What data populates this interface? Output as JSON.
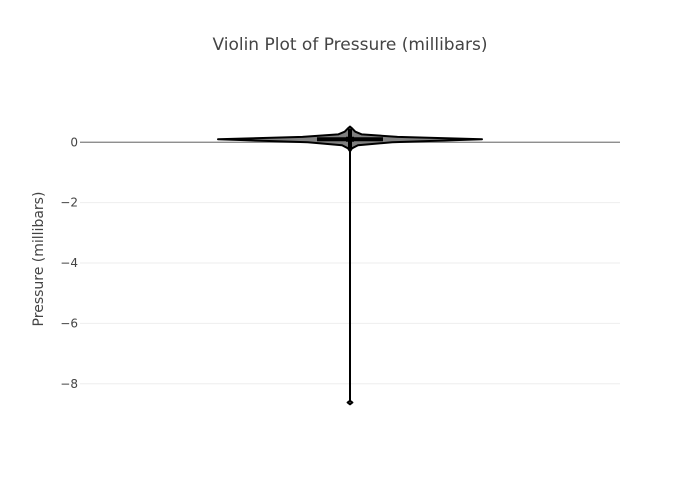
{
  "chart_data": {
    "type": "violin",
    "title": "Violin Plot of Pressure (millibars)",
    "xlabel": "",
    "ylabel": "Pressure (millibars)",
    "ylim": [
      -9.2,
      1.4
    ],
    "yticks": [
      0,
      -2,
      -4,
      -6,
      -8
    ],
    "ytick_labels": [
      "0",
      "−2",
      "−4",
      "−6",
      "−8"
    ],
    "grid": true,
    "zero_line": true,
    "legend": "none",
    "colors": {
      "fill": "#808080",
      "outline": "#000000",
      "grid": "#eeeeee",
      "zero_line": "#7f7f7f",
      "text": "#444444"
    },
    "series": [
      {
        "min": -8.65,
        "q1": 0.05,
        "median": 0.1,
        "q3": 0.15,
        "max": 0.52,
        "lower_fence": -0.25,
        "upper_fence": 0.45,
        "density": [
          [
            -8.68,
            0.0
          ],
          [
            -8.62,
            0.018
          ],
          [
            -8.56,
            0.0
          ],
          [
            -8.0,
            0.0
          ],
          [
            -0.3,
            0.0
          ],
          [
            -0.2,
            0.015
          ],
          [
            -0.1,
            0.06
          ],
          [
            0.0,
            0.32
          ],
          [
            0.1,
            1.0
          ],
          [
            0.18,
            0.36
          ],
          [
            0.26,
            0.09
          ],
          [
            0.35,
            0.04
          ],
          [
            0.45,
            0.018
          ],
          [
            0.52,
            0.0
          ]
        ]
      }
    ]
  }
}
